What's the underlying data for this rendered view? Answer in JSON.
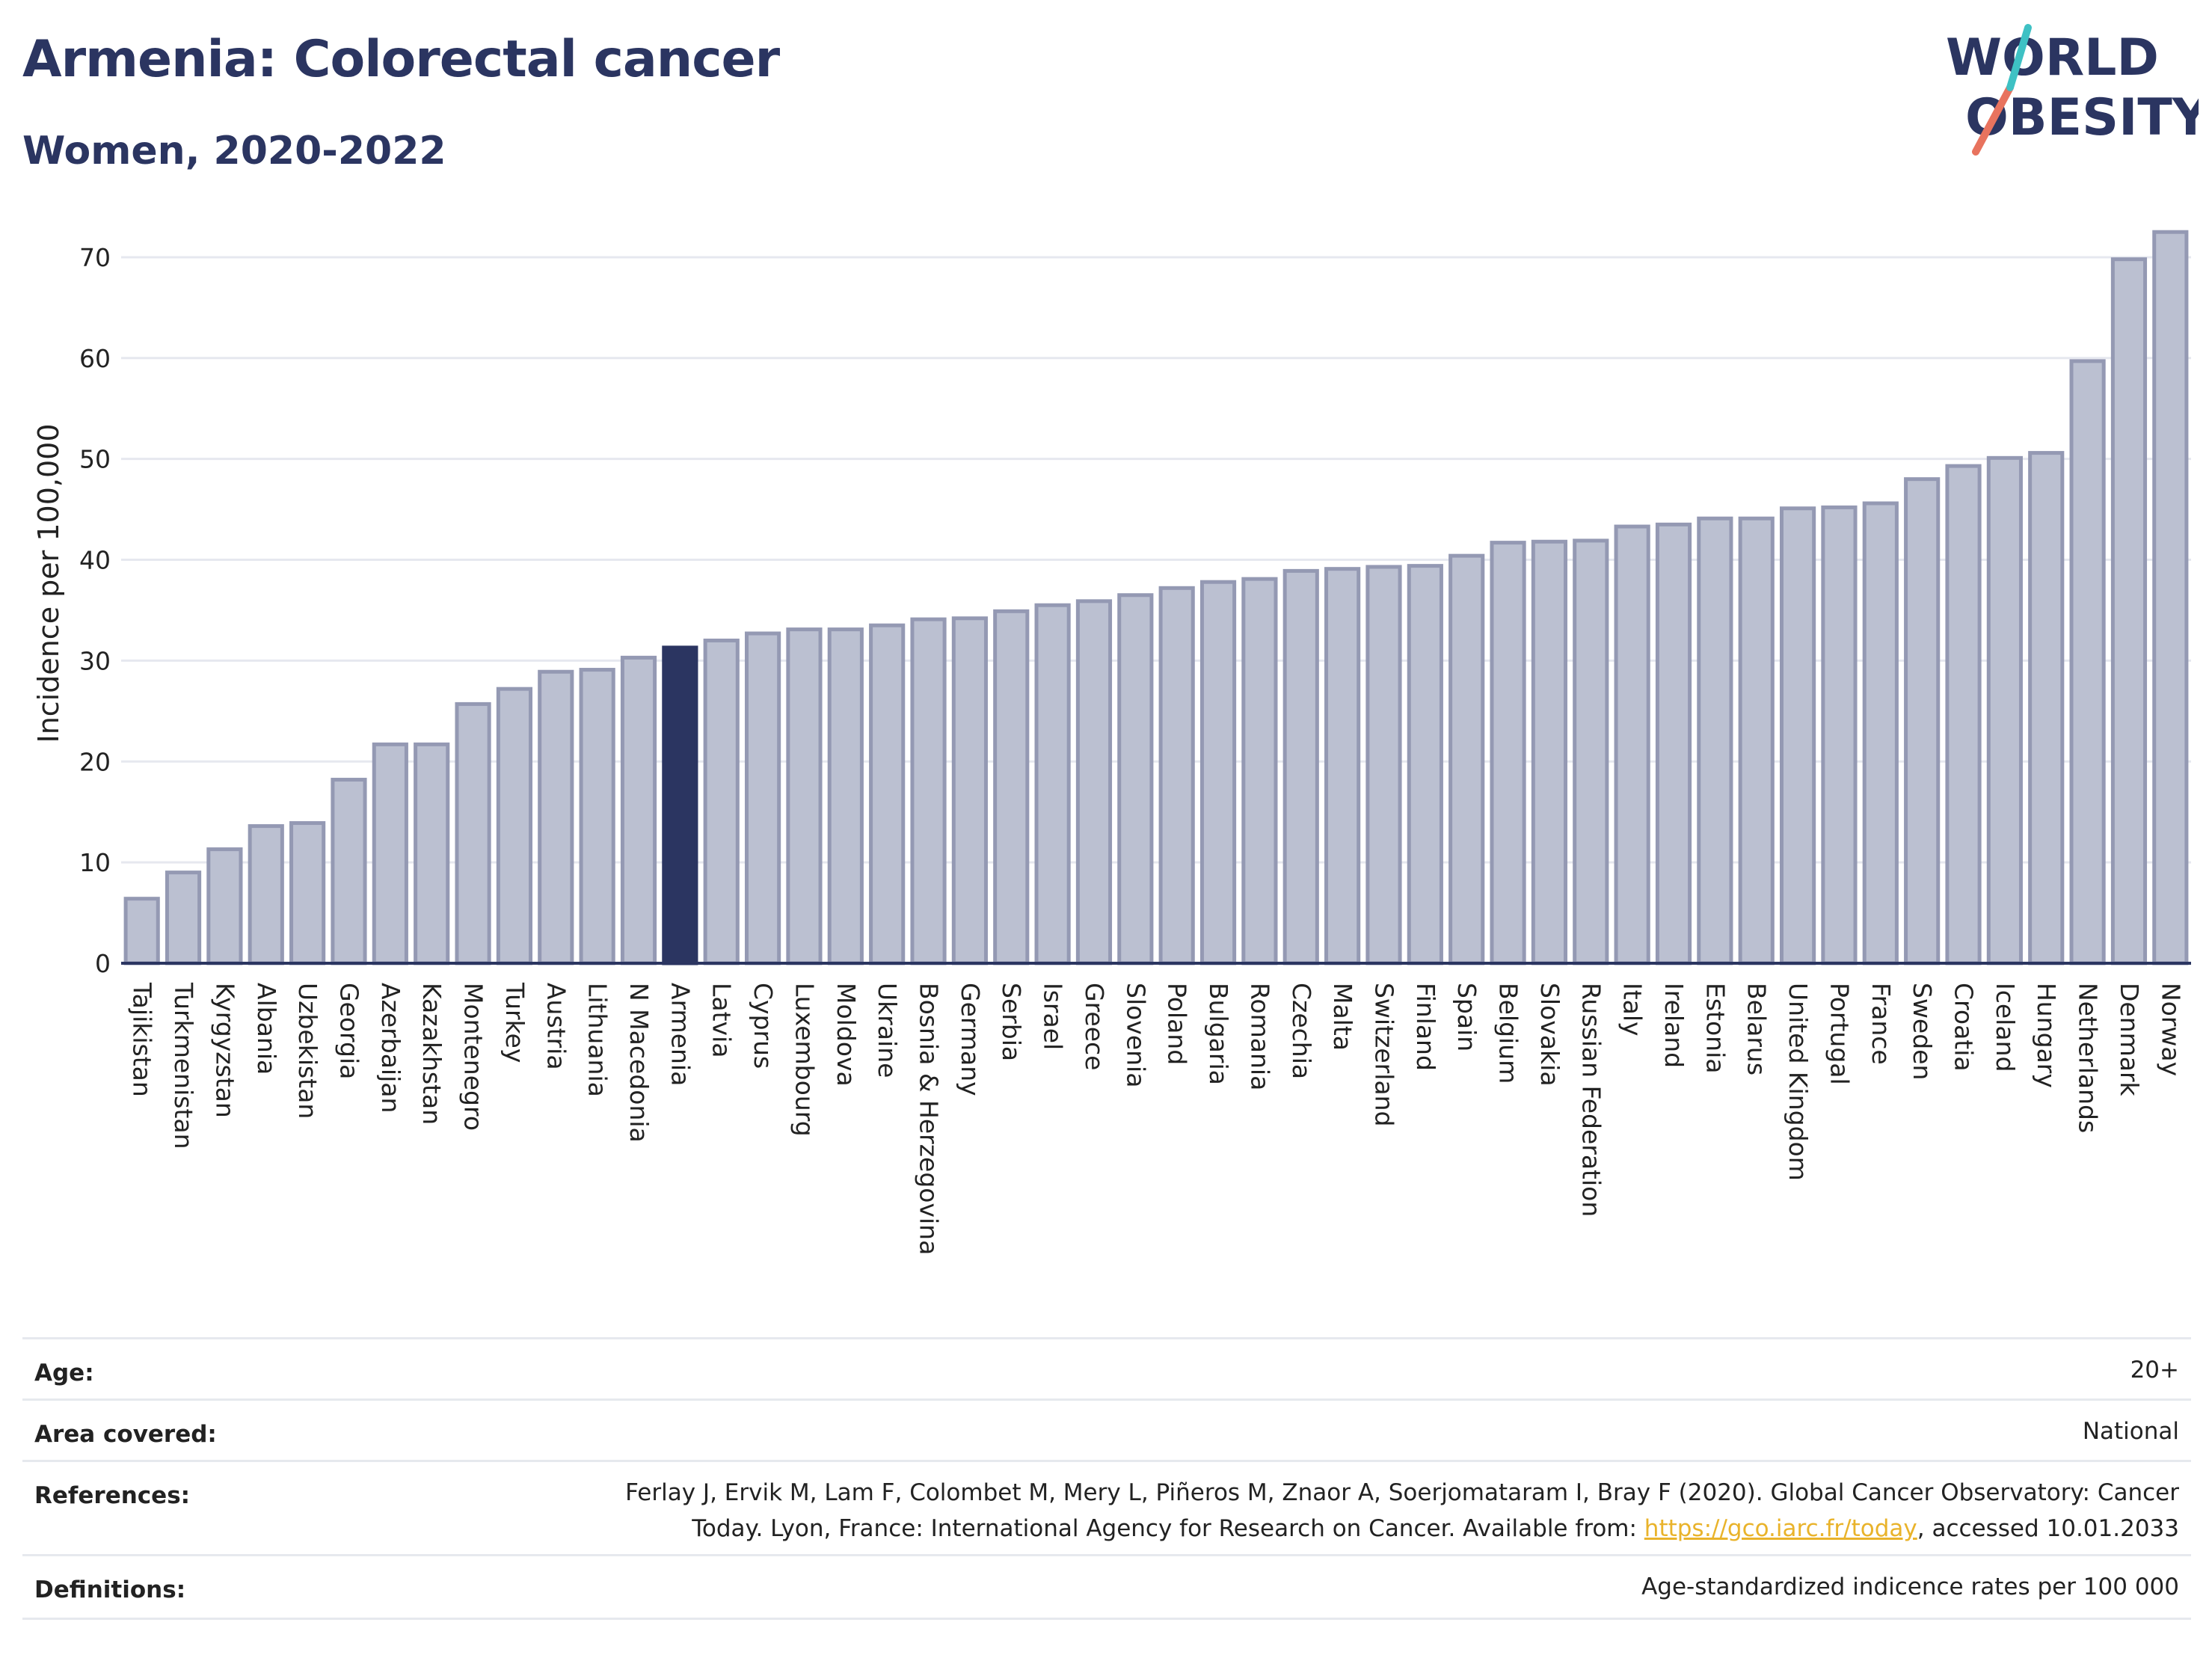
{
  "header": {
    "title": "Armenia: Colorectal cancer",
    "subtitle": "Women, 2020-2022"
  },
  "logo": {
    "line1": "WORLD",
    "line2": "OBESITY"
  },
  "chart_data": {
    "type": "bar",
    "ylabel": "Incidence per 100,000",
    "ylim": [
      0,
      74
    ],
    "yticks": [
      0,
      10,
      20,
      30,
      40,
      50,
      60,
      70
    ],
    "grid": true,
    "highlight": "Armenia",
    "colors": {
      "bar": "#bbc0d1",
      "bar_edge": "#9499b3",
      "highlight": "#2b3561",
      "axis": "#2b3561",
      "grid": "#e6e8ef"
    },
    "categories": [
      "Tajikistan",
      "Turkmenistan",
      "Kyrgyzstan",
      "Albania",
      "Uzbekistan",
      "Georgia",
      "Azerbaijan",
      "Kazakhstan",
      "Montenegro",
      "Turkey",
      "Austria",
      "Lithuania",
      "N Macedonia",
      "Armenia",
      "Latvia",
      "Cyprus",
      "Luxembourg",
      "Moldova",
      "Ukraine",
      "Bosnia & Herzegovina",
      "Germany",
      "Serbia",
      "Israel",
      "Greece",
      "Slovenia",
      "Poland",
      "Bulgaria",
      "Romania",
      "Czechia",
      "Malta",
      "Switzerland",
      "Finland",
      "Spain",
      "Belgium",
      "Slovakia",
      "Russian Federation",
      "Italy",
      "Ireland",
      "Estonia",
      "Belarus",
      "United Kingdom",
      "Portugal",
      "France",
      "Sweden",
      "Croatia",
      "Iceland",
      "Hungary",
      "Netherlands",
      "Denmark",
      "Norway"
    ],
    "values": [
      6.4,
      9.0,
      11.3,
      13.6,
      13.9,
      18.2,
      21.7,
      21.7,
      25.7,
      27.2,
      28.9,
      29.1,
      30.3,
      31.3,
      32.0,
      32.7,
      33.1,
      33.1,
      33.5,
      34.1,
      34.2,
      34.9,
      35.5,
      35.9,
      36.5,
      37.2,
      37.8,
      38.1,
      38.9,
      39.1,
      39.3,
      39.4,
      40.4,
      41.7,
      41.8,
      41.9,
      43.3,
      43.5,
      44.1,
      44.1,
      45.1,
      45.2,
      45.6,
      48.0,
      49.3,
      50.1,
      50.6,
      59.7,
      69.8,
      72.5
    ]
  },
  "meta": {
    "age_label": "Age:",
    "age_value": "20+",
    "area_label": "Area covered:",
    "area_value": "National",
    "references_label": "References:",
    "references_line1": "Ferlay J, Ervik M, Lam F, Colombet M, Mery L, Piñeros M, Znaor A, Soerjomataram I, Bray F (2020). Global Cancer Observatory: Cancer",
    "references_line2_pre": "Today. Lyon, France: International Agency for Research on Cancer. Available from: ",
    "references_link": "https://gco.iarc.fr/today",
    "references_line2_post": ", accessed 10.01.2033",
    "definitions_label": "Definitions:",
    "definitions_value": "Age-standardized indicence rates per 100 000"
  }
}
